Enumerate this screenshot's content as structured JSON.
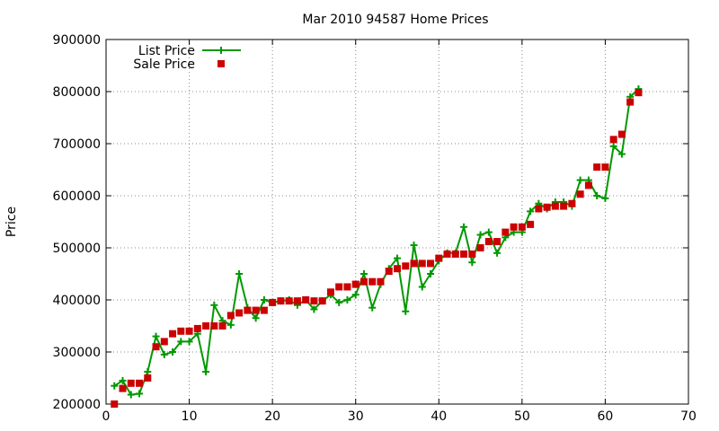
{
  "chart_data": {
    "type": "line",
    "title": "Mar 2010 94587 Home Prices",
    "xlabel": "",
    "ylabel": "Price",
    "xlim": [
      0,
      70
    ],
    "ylim": [
      200000,
      900000
    ],
    "x_ticks": [
      0,
      10,
      20,
      30,
      40,
      50,
      60,
      70
    ],
    "y_ticks": [
      200000,
      300000,
      400000,
      500000,
      600000,
      700000,
      800000,
      900000
    ],
    "grid": true,
    "legend_position": "top-left",
    "x": [
      1,
      2,
      3,
      4,
      5,
      6,
      7,
      8,
      9,
      10,
      11,
      12,
      13,
      14,
      15,
      16,
      17,
      18,
      19,
      20,
      21,
      22,
      23,
      24,
      25,
      26,
      27,
      28,
      29,
      30,
      31,
      32,
      33,
      34,
      35,
      36,
      37,
      38,
      39,
      40,
      41,
      42,
      43,
      44,
      45,
      46,
      47,
      48,
      49,
      50,
      51,
      52,
      53,
      54,
      55,
      56,
      57,
      58,
      59,
      60,
      61,
      62,
      63,
      64
    ],
    "series": [
      {
        "name": "List Price",
        "style": "line+cross",
        "color": "#009900",
        "values": [
          235000,
          245000,
          218000,
          220000,
          262000,
          330000,
          295000,
          300000,
          320000,
          320000,
          335000,
          262000,
          390000,
          360000,
          352000,
          450000,
          385000,
          365000,
          400000,
          395000,
          398000,
          400000,
          390000,
          400000,
          382000,
          398000,
          410000,
          395000,
          400000,
          410000,
          450000,
          385000,
          430000,
          460000,
          480000,
          378000,
          505000,
          425000,
          450000,
          475000,
          490000,
          490000,
          540000,
          472000,
          525000,
          530000,
          490000,
          520000,
          530000,
          530000,
          570000,
          585000,
          575000,
          588000,
          588000,
          580000,
          630000,
          630000,
          600000,
          595000,
          695000,
          680000,
          790000,
          805000
        ]
      },
      {
        "name": "Sale Price",
        "style": "square-markers",
        "color": "#cc0000",
        "values": [
          200000,
          230000,
          240000,
          240000,
          250000,
          310000,
          320000,
          335000,
          340000,
          340000,
          345000,
          350000,
          350000,
          350000,
          370000,
          375000,
          380000,
          380000,
          380000,
          395000,
          398000,
          398000,
          398000,
          400000,
          398000,
          398000,
          415000,
          425000,
          425000,
          430000,
          435000,
          435000,
          435000,
          455000,
          460000,
          465000,
          470000,
          470000,
          470000,
          480000,
          488000,
          488000,
          488000,
          488000,
          500000,
          512000,
          512000,
          530000,
          540000,
          540000,
          545000,
          575000,
          578000,
          580000,
          580000,
          585000,
          603000,
          620000,
          655000,
          655000,
          708000,
          718000,
          780000,
          798000
        ]
      }
    ]
  }
}
